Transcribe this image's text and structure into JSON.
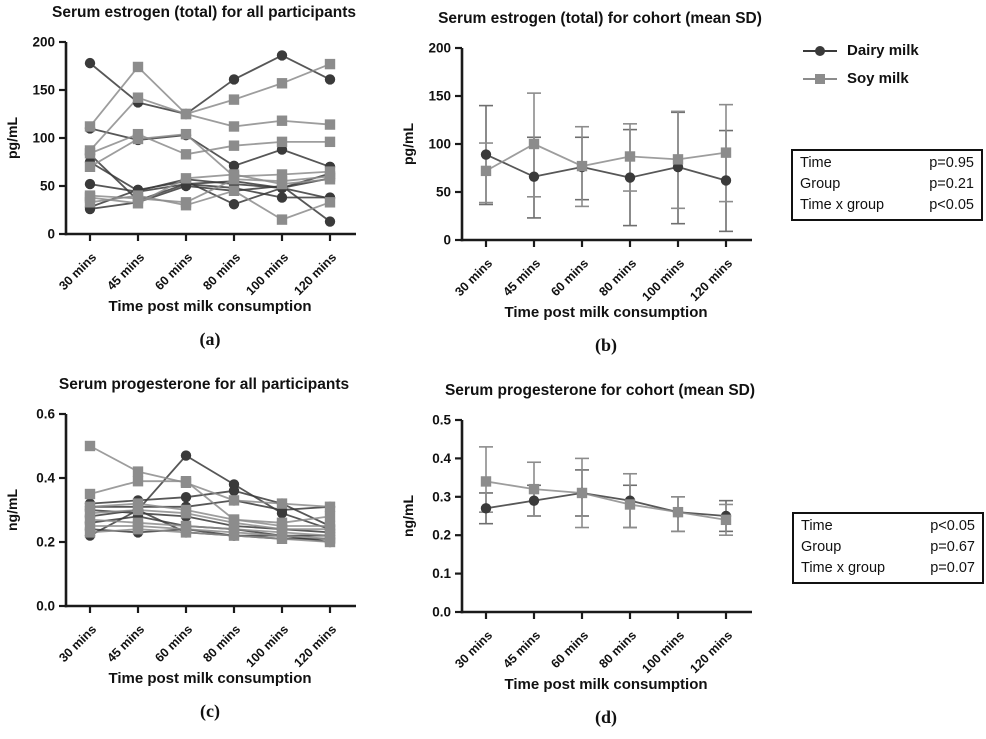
{
  "palette": {
    "dairy": "#3a3a3a",
    "soy": "#8c8c8c",
    "axis": "#1a1a1a"
  },
  "legend": {
    "position": "top-right",
    "items": [
      {
        "label": "Dairy milk",
        "marker": "circle",
        "color": "#3a3a3a"
      },
      {
        "label": "Soy milk",
        "marker": "square",
        "color": "#8c8c8c"
      }
    ]
  },
  "stats_boxes": [
    {
      "id": "b",
      "rows": [
        [
          "Time",
          "p=0.95"
        ],
        [
          "Group",
          "p=0.21"
        ],
        [
          "Time x group",
          "p<0.05"
        ]
      ]
    },
    {
      "id": "d",
      "rows": [
        [
          "Time",
          "p<0.05"
        ],
        [
          "Group",
          "p=0.67"
        ],
        [
          "Time x group",
          "p=0.07"
        ]
      ]
    }
  ],
  "chart_data": [
    {
      "id": "a",
      "panel_label": "(a)",
      "type": "line",
      "title": "Serum estrogen (total) for all participants",
      "xlabel": "Time post milk consumption",
      "ylabel": "pg/mL",
      "categories": [
        "30 mins",
        "45 mins",
        "60 mins",
        "80 mins",
        "100 mins",
        "120 mins"
      ],
      "ylim": [
        0,
        200
      ],
      "yticks": [
        0,
        50,
        100,
        150,
        200
      ],
      "ytick_labels": [
        "0",
        "50",
        "100",
        "150",
        "200"
      ],
      "grid": false,
      "series": [
        {
          "name": "Dairy participant 1",
          "group": "dairy",
          "marker": "circle",
          "color": "#3a3a3a",
          "values": [
            178,
            137,
            125,
            161,
            186,
            161
          ]
        },
        {
          "name": "Dairy participant 2",
          "group": "dairy",
          "marker": "circle",
          "color": "#3a3a3a",
          "values": [
            110,
            98,
            103,
            71,
            88,
            70
          ]
        },
        {
          "name": "Dairy participant 3",
          "group": "dairy",
          "marker": "circle",
          "color": "#3a3a3a",
          "values": [
            75,
            45,
            57,
            52,
            48,
            63
          ]
        },
        {
          "name": "Dairy participant 4",
          "group": "dairy",
          "marker": "circle",
          "color": "#3a3a3a",
          "values": [
            52,
            44,
            52,
            48,
            38,
            38
          ]
        },
        {
          "name": "Dairy participant 5",
          "group": "dairy",
          "marker": "circle",
          "color": "#3a3a3a",
          "values": [
            28,
            46,
            55,
            31,
            48,
            37
          ]
        },
        {
          "name": "Dairy participant 6",
          "group": "dairy",
          "marker": "circle",
          "color": "#3a3a3a",
          "values": [
            26,
            33,
            50,
            45,
            50,
            13
          ]
        },
        {
          "name": "Dairy participant 7",
          "group": "dairy",
          "marker": "circle",
          "color": "#3a3a3a",
          "values": [
            83,
            35,
            52,
            55,
            48,
            58
          ]
        },
        {
          "name": "Soy participant 1",
          "group": "soy",
          "marker": "square",
          "color": "#8c8c8c",
          "values": [
            112,
            174,
            125,
            140,
            157,
            177
          ]
        },
        {
          "name": "Soy participant 2",
          "group": "soy",
          "marker": "square",
          "color": "#8c8c8c",
          "values": [
            87,
            142,
            125,
            112,
            118,
            114
          ]
        },
        {
          "name": "Soy participant 3",
          "group": "soy",
          "marker": "square",
          "color": "#8c8c8c",
          "values": [
            84,
            104,
            83,
            92,
            96,
            96
          ]
        },
        {
          "name": "Soy participant 4",
          "group": "soy",
          "marker": "square",
          "color": "#8c8c8c",
          "values": [
            70,
            99,
            104,
            60,
            62,
            65
          ]
        },
        {
          "name": "Soy participant 5",
          "group": "soy",
          "marker": "square",
          "color": "#8c8c8c",
          "values": [
            40,
            37,
            33,
            57,
            55,
            60
          ]
        },
        {
          "name": "Soy participant 6",
          "group": "soy",
          "marker": "square",
          "color": "#8c8c8c",
          "values": [
            33,
            40,
            30,
            45,
            15,
            33
          ]
        },
        {
          "name": "Soy participant 7",
          "group": "soy",
          "marker": "square",
          "color": "#8c8c8c",
          "values": [
            38,
            32,
            58,
            62,
            52,
            57
          ]
        }
      ]
    },
    {
      "id": "b",
      "panel_label": "(b)",
      "type": "line",
      "title": "Serum estrogen (total) for cohort (mean SD)",
      "xlabel": "Time post milk consumption",
      "ylabel": "pg/mL",
      "categories": [
        "30 mins",
        "45 mins",
        "60 mins",
        "80 mins",
        "100 mins",
        "120 mins"
      ],
      "ylim": [
        0,
        200
      ],
      "yticks": [
        0,
        50,
        100,
        150,
        200
      ],
      "ytick_labels": [
        "0",
        "50",
        "100",
        "150",
        "200"
      ],
      "grid": false,
      "series": [
        {
          "name": "Dairy milk",
          "group": "dairy",
          "marker": "circle",
          "color": "#3a3a3a",
          "error_color": "#6e6e6e",
          "values": [
            89,
            66,
            76,
            65,
            76,
            62
          ],
          "error_low": [
            37,
            23,
            42,
            15,
            17,
            9
          ],
          "error_high": [
            140,
            107,
            107,
            115,
            133,
            114
          ]
        },
        {
          "name": "Soy milk",
          "group": "soy",
          "marker": "square",
          "color": "#8c8c8c",
          "error_color": "#8c8c8c",
          "values": [
            72,
            100,
            77,
            87,
            84,
            91
          ],
          "error_low": [
            39,
            45,
            35,
            51,
            33,
            40
          ],
          "error_high": [
            101,
            153,
            118,
            121,
            134,
            141
          ]
        }
      ]
    },
    {
      "id": "c",
      "panel_label": "(c)",
      "type": "line",
      "title": "Serum progesterone for all participants",
      "xlabel": "Time post milk consumption",
      "ylabel": "ng/mL",
      "categories": [
        "30 mins",
        "45 mins",
        "60 mins",
        "80 mins",
        "100 mins",
        "120 mins"
      ],
      "ylim": [
        0,
        0.6
      ],
      "yticks": [
        0,
        0.2,
        0.4,
        0.6
      ],
      "ytick_labels": [
        "0.0",
        "0.2",
        "0.4",
        "0.6"
      ],
      "grid": false,
      "series": [
        {
          "name": "Dairy participant 1",
          "group": "dairy",
          "marker": "circle",
          "color": "#3a3a3a",
          "values": [
            0.28,
            0.3,
            0.47,
            0.38,
            0.29,
            0.24
          ]
        },
        {
          "name": "Dairy participant 2",
          "group": "dairy",
          "marker": "circle",
          "color": "#3a3a3a",
          "values": [
            0.32,
            0.33,
            0.34,
            0.36,
            0.32,
            0.25
          ]
        },
        {
          "name": "Dairy participant 3",
          "group": "dairy",
          "marker": "circle",
          "color": "#3a3a3a",
          "values": [
            0.31,
            0.31,
            0.31,
            0.33,
            0.3,
            0.31
          ]
        },
        {
          "name": "Dairy participant 4",
          "group": "dairy",
          "marker": "circle",
          "color": "#3a3a3a",
          "values": [
            0.3,
            0.29,
            0.28,
            0.25,
            0.24,
            0.23
          ]
        },
        {
          "name": "Dairy participant 5",
          "group": "dairy",
          "marker": "circle",
          "color": "#3a3a3a",
          "values": [
            0.26,
            0.28,
            0.25,
            0.24,
            0.22,
            0.22
          ]
        },
        {
          "name": "Dairy participant 6",
          "group": "dairy",
          "marker": "circle",
          "color": "#3a3a3a",
          "values": [
            0.24,
            0.23,
            0.24,
            0.22,
            0.21,
            0.21
          ]
        },
        {
          "name": "Dairy participant 7",
          "group": "dairy",
          "marker": "circle",
          "color": "#3a3a3a",
          "values": [
            0.22,
            0.3,
            0.23,
            0.22,
            0.22,
            0.2
          ]
        },
        {
          "name": "Soy participant 1",
          "group": "soy",
          "marker": "square",
          "color": "#8c8c8c",
          "values": [
            0.5,
            0.42,
            0.385,
            0.33,
            0.32,
            0.31
          ]
        },
        {
          "name": "Soy participant 2",
          "group": "soy",
          "marker": "square",
          "color": "#8c8c8c",
          "values": [
            0.35,
            0.39,
            0.39,
            0.27,
            0.26,
            0.28
          ]
        },
        {
          "name": "Soy participant 3",
          "group": "soy",
          "marker": "square",
          "color": "#8c8c8c",
          "values": [
            0.31,
            0.32,
            0.3,
            0.27,
            0.25,
            0.25
          ]
        },
        {
          "name": "Soy participant 4",
          "group": "soy",
          "marker": "square",
          "color": "#8c8c8c",
          "values": [
            0.29,
            0.3,
            0.29,
            0.26,
            0.24,
            0.24
          ]
        },
        {
          "name": "Soy participant 5",
          "group": "soy",
          "marker": "square",
          "color": "#8c8c8c",
          "values": [
            0.27,
            0.26,
            0.25,
            0.24,
            0.23,
            0.22
          ]
        },
        {
          "name": "Soy participant 6",
          "group": "soy",
          "marker": "square",
          "color": "#8c8c8c",
          "values": [
            0.25,
            0.25,
            0.24,
            0.23,
            0.22,
            0.21
          ]
        },
        {
          "name": "Soy participant 7",
          "group": "soy",
          "marker": "square",
          "color": "#8c8c8c",
          "values": [
            0.23,
            0.24,
            0.23,
            0.22,
            0.21,
            0.2
          ]
        }
      ]
    },
    {
      "id": "d",
      "panel_label": "(d)",
      "type": "line",
      "title": "Serum progesterone for cohort (mean SD)",
      "xlabel": "Time post milk consumption",
      "ylabel": "ng/mL",
      "categories": [
        "30 mins",
        "45 mins",
        "60 mins",
        "80 mins",
        "100 mins",
        "120 mins"
      ],
      "ylim": [
        0,
        0.5
      ],
      "yticks": [
        0,
        0.1,
        0.2,
        0.3,
        0.4,
        0.5
      ],
      "ytick_labels": [
        "0.0",
        "0.1",
        "0.2",
        "0.3",
        "0.4",
        "0.5"
      ],
      "grid": false,
      "series": [
        {
          "name": "Dairy milk",
          "group": "dairy",
          "marker": "circle",
          "color": "#3a3a3a",
          "error_color": "#6e6e6e",
          "values": [
            0.27,
            0.29,
            0.31,
            0.29,
            0.26,
            0.25
          ],
          "error_low": [
            0.23,
            0.25,
            0.25,
            0.22,
            0.21,
            0.21
          ],
          "error_high": [
            0.31,
            0.33,
            0.37,
            0.33,
            0.3,
            0.29
          ]
        },
        {
          "name": "Soy milk",
          "group": "soy",
          "marker": "square",
          "color": "#8c8c8c",
          "error_color": "#8c8c8c",
          "values": [
            0.34,
            0.32,
            0.31,
            0.28,
            0.26,
            0.24
          ],
          "error_low": [
            0.26,
            0.25,
            0.22,
            0.22,
            0.21,
            0.2
          ],
          "error_high": [
            0.43,
            0.39,
            0.4,
            0.36,
            0.3,
            0.28
          ]
        }
      ]
    }
  ]
}
